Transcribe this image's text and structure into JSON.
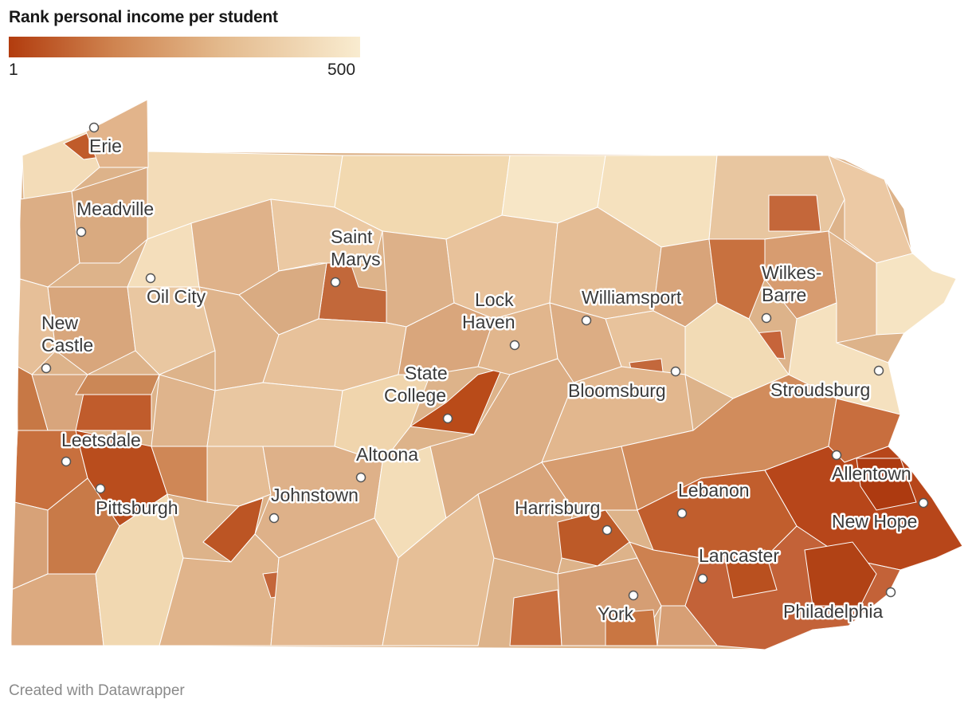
{
  "title": "Rank personal income per student",
  "legend": {
    "min_label": "1",
    "max_label": "500",
    "color_low": "#b23c0e",
    "color_high": "#f9ecd0"
  },
  "cities": [
    {
      "name": "Erie"
    },
    {
      "name": "Meadville"
    },
    {
      "name": "Saint Marys"
    },
    {
      "name": "Oil City"
    },
    {
      "name": "New Castle"
    },
    {
      "name": "Lock Haven"
    },
    {
      "name": "Williamsport"
    },
    {
      "name": "Wilkes-Barre"
    },
    {
      "name": "State College"
    },
    {
      "name": "Bloomsburg"
    },
    {
      "name": "Stroudsburg"
    },
    {
      "name": "Leetsdale"
    },
    {
      "name": "Altoona"
    },
    {
      "name": "Allentown"
    },
    {
      "name": "Pittsburgh"
    },
    {
      "name": "Johnstown"
    },
    {
      "name": "Harrisburg"
    },
    {
      "name": "Lebanon"
    },
    {
      "name": "New Hope"
    },
    {
      "name": "Lancaster"
    },
    {
      "name": "York"
    },
    {
      "name": "Philadelphia"
    }
  ],
  "credit": "Created with Datawrapper"
}
